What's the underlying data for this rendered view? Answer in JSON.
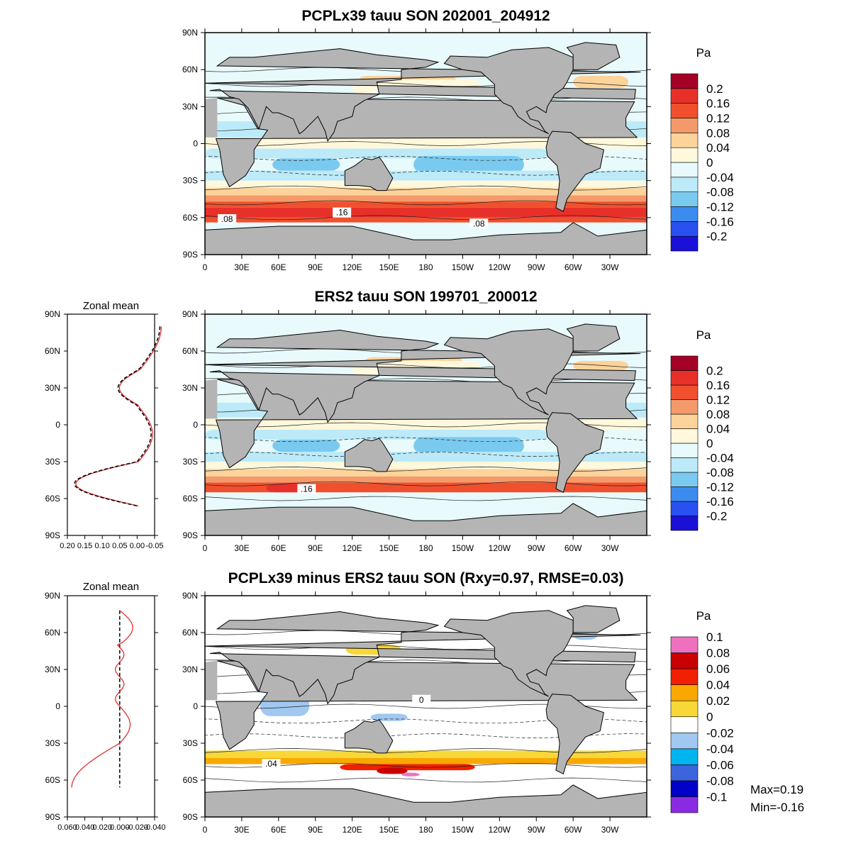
{
  "panels": [
    {
      "title": "PCPLx39 tauu SON 202001_204912",
      "unit": "Pa",
      "colorbar": {
        "colors": [
          "#1a10d8",
          "#2a50f0",
          "#3c8cf0",
          "#7acaf0",
          "#bceaf8",
          "#e8fafc",
          "#fff8dc",
          "#fcd39a",
          "#f49a6a",
          "#f0502e",
          "#e8302a",
          "#a50026"
        ],
        "labels": [
          "-0.2",
          "-0.16",
          "-0.12",
          "-0.08",
          "-0.04",
          "0",
          "0.04",
          "0.08",
          "0.12",
          "0.16",
          "0.2"
        ]
      },
      "contour_labels": [
        ".08",
        ".16",
        ".08"
      ]
    },
    {
      "title": "ERS2 tauu SON 199701_200012",
      "unit": "Pa",
      "colorbar": {
        "colors": [
          "#1a10d8",
          "#2a50f0",
          "#3c8cf0",
          "#7acaf0",
          "#bceaf8",
          "#e8fafc",
          "#fff8dc",
          "#fcd39a",
          "#f49a6a",
          "#f0502e",
          "#e8302a",
          "#a50026"
        ],
        "labels": [
          "-0.2",
          "-0.16",
          "-0.12",
          "-0.08",
          "-0.04",
          "0",
          "0.04",
          "0.08",
          "0.12",
          "0.16",
          "0.2"
        ]
      },
      "contour_labels": [
        ".16"
      ],
      "zonal_mean": {
        "title": "Zonal mean",
        "x_ticks": [
          "0.20",
          "0.15",
          "0.10",
          "0.05",
          "0.00",
          "-0.05"
        ]
      }
    },
    {
      "title": "PCPLx39 minus ERS2 tauu SON (Rxy=0.97, RMSE=0.03)",
      "unit": "Pa",
      "colorbar": {
        "colors": [
          "#8a2be2",
          "#0000c8",
          "#3c64dc",
          "#00b4f0",
          "#a0c8f0",
          "#ffffff",
          "#f8d838",
          "#f8a800",
          "#f02000",
          "#c80000",
          "#f070c0"
        ],
        "labels": [
          "-0.1",
          "-0.08",
          "-0.06",
          "-0.04",
          "-0.02",
          "0",
          "0.02",
          "0.04",
          "0.06",
          "0.08",
          "0.1"
        ]
      },
      "contour_labels": [
        "0",
        ".04"
      ],
      "zonal_mean": {
        "title": "Zonal mean",
        "x_ticks": [
          "0.060",
          "0.040",
          "0.020",
          "0.000",
          "-0.020",
          "-0.040"
        ]
      },
      "stats": {
        "max": "Max=0.19",
        "min": "Min=-0.16"
      }
    }
  ],
  "lat_ticks": [
    "90N",
    "60N",
    "30N",
    "0",
    "30S",
    "60S",
    "90S"
  ],
  "lon_ticks": [
    "0",
    "30E",
    "60E",
    "90E",
    "120E",
    "150E",
    "180",
    "150W",
    "120W",
    "90W",
    "60W",
    "30W"
  ],
  "colors": {
    "land": "#b4b4b4",
    "frame": "#000000"
  }
}
